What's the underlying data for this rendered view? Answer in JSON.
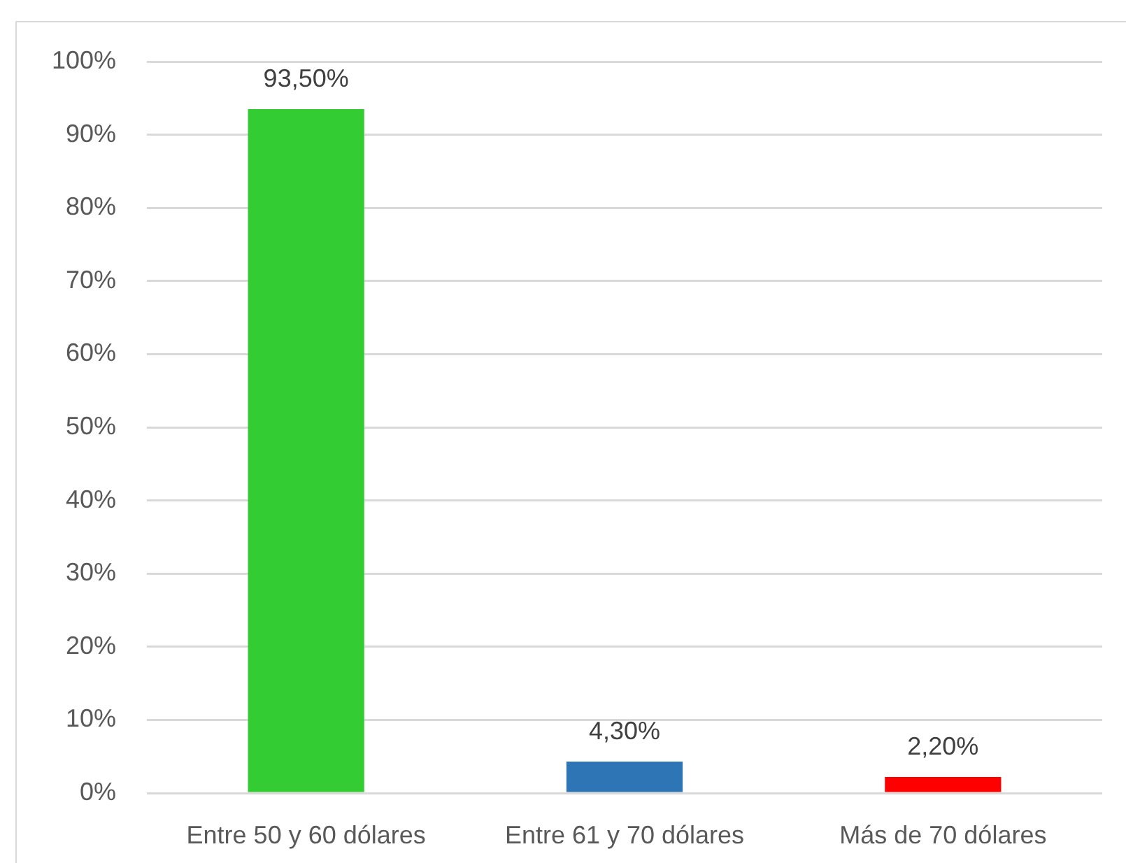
{
  "chart_data": {
    "type": "bar",
    "categories": [
      "Entre 50 y 60 dólares",
      "Entre 61 y 70 dólares",
      "Más de 70 dólares"
    ],
    "values": [
      93.5,
      4.3,
      2.2
    ],
    "colors": [
      "#33cc33",
      "#2e75b6",
      "#ff0000"
    ],
    "value_labels": [
      "93,50%",
      "4,30%",
      "2,20%"
    ],
    "ylim": [
      0,
      100
    ],
    "yticks": [
      {
        "value": 0,
        "label": "0%"
      },
      {
        "value": 10,
        "label": "10%"
      },
      {
        "value": 20,
        "label": "20%"
      },
      {
        "value": 30,
        "label": "30%"
      },
      {
        "value": 40,
        "label": "40%"
      },
      {
        "value": 50,
        "label": "50%"
      },
      {
        "value": 60,
        "label": "60%"
      },
      {
        "value": 70,
        "label": "70%"
      },
      {
        "value": 80,
        "label": "80%"
      },
      {
        "value": 90,
        "label": "90%"
      },
      {
        "value": 100,
        "label": "100%"
      }
    ],
    "grid": "y"
  }
}
